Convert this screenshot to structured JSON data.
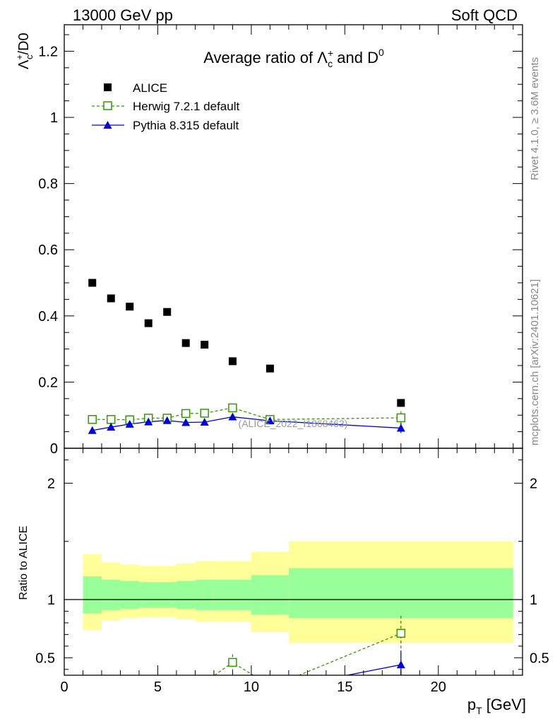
{
  "header": {
    "left": "13000 GeV pp",
    "right": "Soft QCD",
    "title_prefix": "Average ratio of ",
    "title_lambda": "Λ",
    "title_lambda_sup": "+",
    "title_lambda_sub": "c",
    "title_and": " and D",
    "title_d_sup": "0"
  },
  "side_labels": {
    "rivet": "Rivet 4.1.0, ≥ 3.6M events",
    "mcplots": "mcplots.cern.ch [arXiv:2401.10621]"
  },
  "watermark": "(ALICE_2022_I1868463)",
  "colors": {
    "alice": "#000000",
    "herwig": "#339900",
    "pythia": "#0000dd",
    "band_outer": "#ffff99",
    "band_inner": "#99ff99"
  },
  "chart_data": [
    {
      "type": "scatter",
      "panel": "main",
      "ylabel_lambda": "Λ",
      "ylabel_sup": "+",
      "ylabel_sub": "c",
      "ylabel_rest": "/D0",
      "xlim": [
        0,
        24.5
      ],
      "ylim": [
        0,
        1.28
      ],
      "yticks": [
        0,
        0.2,
        0.4,
        0.6,
        0.8,
        1,
        1.2
      ],
      "ytick_labels": [
        "0",
        "0.2",
        "0.4",
        "0.6",
        "0.8",
        "1",
        "1.2"
      ],
      "legend": [
        "ALICE",
        "Herwig 7.2.1 default",
        "Pythia 8.315 default"
      ],
      "series": [
        {
          "name": "ALICE",
          "x": [
            1.5,
            2.5,
            3.5,
            4.5,
            5.5,
            6.5,
            7.5,
            9,
            11,
            18
          ],
          "y": [
            0.5,
            0.453,
            0.428,
            0.378,
            0.412,
            0.318,
            0.313,
            0.263,
            0.241,
            0.137
          ]
        },
        {
          "name": "Herwig 7.2.1 default",
          "x": [
            1.5,
            2.5,
            3.5,
            4.5,
            5.5,
            6.5,
            7.5,
            9,
            11,
            18
          ],
          "y": [
            0.087,
            0.087,
            0.086,
            0.091,
            0.091,
            0.105,
            0.106,
            0.122,
            0.087,
            0.092
          ],
          "err": [
            0.004,
            0.004,
            0.004,
            0.004,
            0.005,
            0.006,
            0.007,
            0.012,
            0.01,
            0.02
          ]
        },
        {
          "name": "Pythia 8.315 default",
          "x": [
            1.5,
            2.5,
            3.5,
            4.5,
            5.5,
            6.5,
            7.5,
            9,
            11,
            18
          ],
          "y": [
            0.054,
            0.064,
            0.073,
            0.08,
            0.084,
            0.078,
            0.079,
            0.095,
            0.083,
            0.061
          ],
          "err": [
            0.003,
            0.003,
            0.003,
            0.003,
            0.004,
            0.004,
            0.005,
            0.008,
            0.01,
            0.015
          ]
        }
      ]
    },
    {
      "type": "line",
      "panel": "ratio",
      "ylabel": "Ratio to ALICE",
      "xlabel_main": "p",
      "xlabel_sub": "T",
      "xlabel_rest": " [GeV]",
      "xlim": [
        0,
        24.5
      ],
      "ylim": [
        0.35,
        2.3
      ],
      "xticks": [
        0,
        5,
        10,
        15,
        20
      ],
      "xtick_labels": [
        "0",
        "5",
        "10",
        "15",
        "20"
      ],
      "yticks": [
        0.5,
        1,
        2
      ],
      "ytick_labels": [
        "0.5",
        "1",
        "2"
      ],
      "bands": {
        "edges": [
          1,
          2,
          3,
          4,
          5,
          6,
          7,
          8,
          10,
          12,
          24
        ],
        "outer_up": [
          1.39,
          1.32,
          1.3,
          1.29,
          1.29,
          1.31,
          1.33,
          1.33,
          1.41,
          1.5
        ],
        "outer_dn": [
          0.74,
          0.82,
          0.84,
          0.85,
          0.85,
          0.83,
          0.81,
          0.81,
          0.72,
          0.63
        ],
        "inner_up": [
          1.2,
          1.17,
          1.16,
          1.15,
          1.15,
          1.16,
          1.17,
          1.17,
          1.21,
          1.27
        ],
        "inner_dn": [
          0.88,
          0.91,
          0.92,
          0.93,
          0.93,
          0.92,
          0.91,
          0.91,
          0.87,
          0.84
        ]
      },
      "series": [
        {
          "name": "Herwig 7.2.1 default",
          "x": [
            9,
            18
          ],
          "y": [
            0.46,
            0.71
          ],
          "err": [
            0.07,
            0.15
          ]
        },
        {
          "name": "Pythia 8.315 default",
          "x": [
            18
          ],
          "y": [
            0.44
          ],
          "err": [
            0.12
          ]
        }
      ]
    }
  ]
}
